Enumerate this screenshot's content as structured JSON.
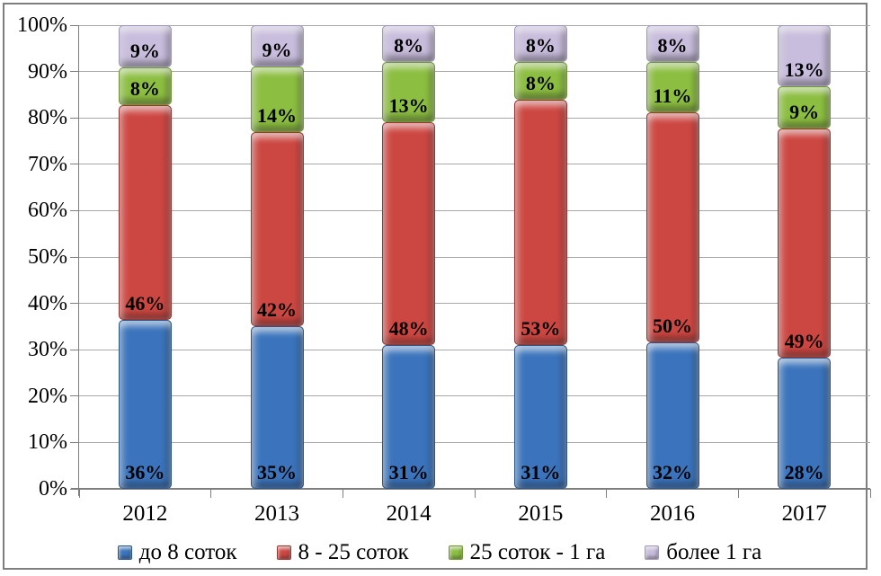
{
  "chart_data": {
    "type": "bar",
    "variant": "stacked-100-percent",
    "title": "",
    "xlabel": "",
    "ylabel": "",
    "categories": [
      "2012",
      "2013",
      "2014",
      "2015",
      "2016",
      "2017"
    ],
    "series": [
      {
        "name": "до 8 соток",
        "color": "#3b74bc",
        "edge": "#2b5790",
        "values": [
          36,
          35,
          31,
          31,
          32,
          28
        ]
      },
      {
        "name": "8 - 25 соток",
        "color": "#cd4742",
        "edge": "#9e3330",
        "values": [
          46,
          42,
          48,
          53,
          50,
          49
        ]
      },
      {
        "name": "25 соток - 1 га",
        "color": "#8cbe41",
        "edge": "#6d9930",
        "values": [
          8,
          14,
          13,
          8,
          11,
          9
        ]
      },
      {
        "name": "более 1 га",
        "color": "#c8bddc",
        "edge": "#a396be",
        "values": [
          9,
          9,
          8,
          8,
          8,
          13
        ]
      }
    ],
    "data_label_suffix": "%",
    "data_label_position": "inside-base",
    "y_axis": {
      "min": 0,
      "max": 100,
      "step": 10,
      "tick_labels": [
        "0%",
        "10%",
        "20%",
        "30%",
        "40%",
        "50%",
        "60%",
        "70%",
        "80%",
        "90%",
        "100%"
      ]
    },
    "grid": true,
    "legend_position": "bottom"
  }
}
